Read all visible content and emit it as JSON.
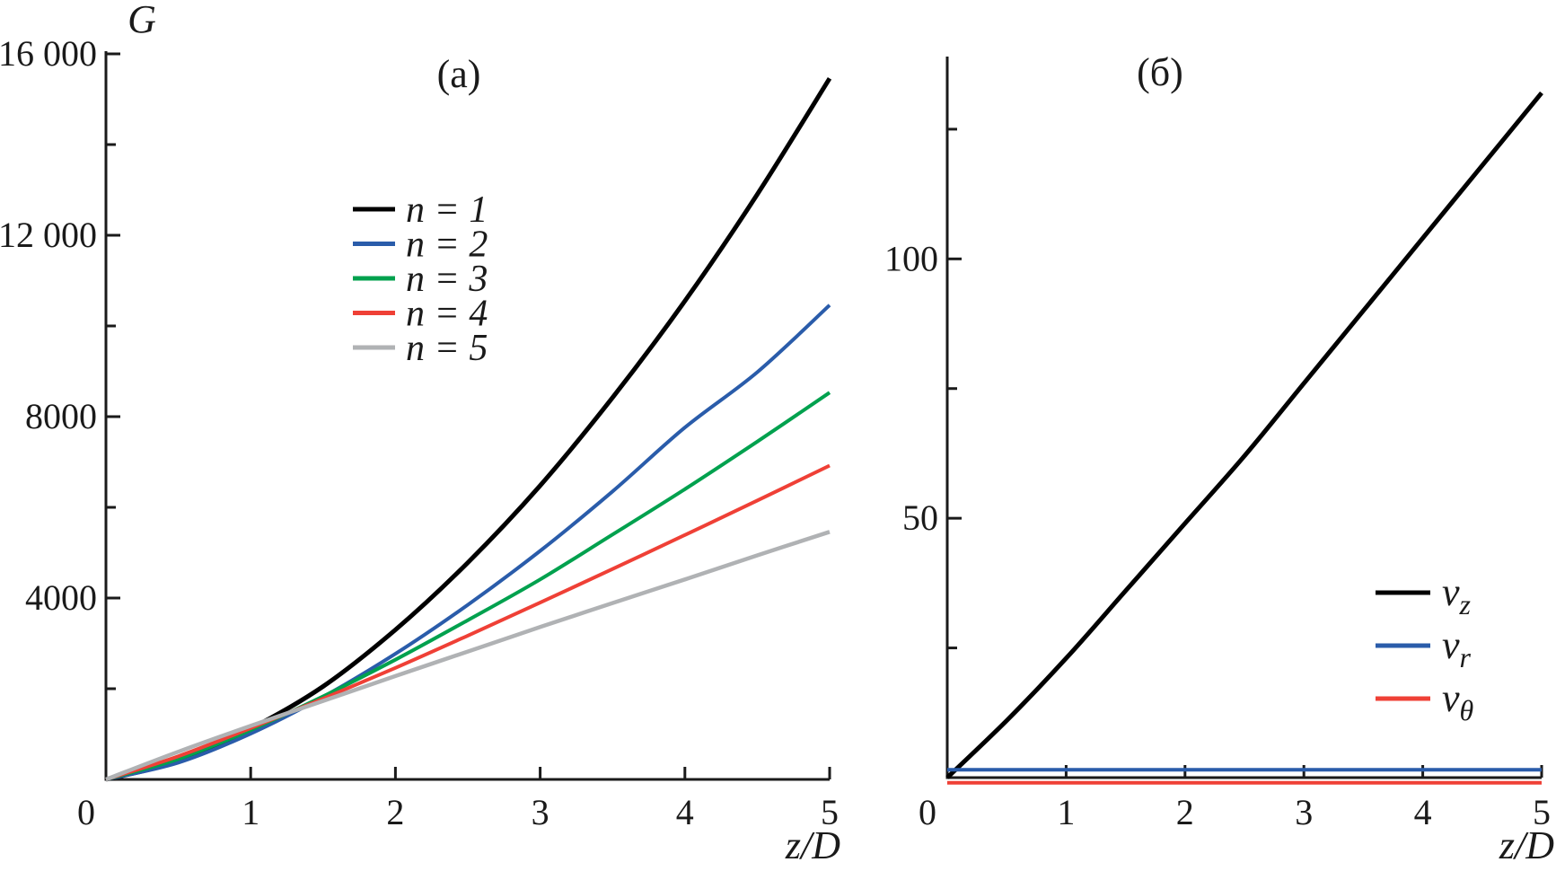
{
  "figure": {
    "background": "#ffffff",
    "text_color": "#1a1a1a",
    "axis_color": "#1a1a1a"
  },
  "chart_data": [
    {
      "id": "a",
      "type": "line",
      "title": "(а)",
      "xlabel": "z/D",
      "ylabel": "G",
      "xlim": [
        0,
        5
      ],
      "ylim": [
        0,
        16000
      ],
      "grid": false,
      "legend_position": "inside-upper-middle",
      "x_ticks": [
        {
          "value": 0,
          "label": "0"
        },
        {
          "value": 1,
          "label": "1"
        },
        {
          "value": 2,
          "label": "2"
        },
        {
          "value": 3,
          "label": "3"
        },
        {
          "value": 4,
          "label": "4"
        },
        {
          "value": 5,
          "label": "5"
        }
      ],
      "y_ticks": [
        {
          "value": 2000,
          "label": ""
        },
        {
          "value": 4000,
          "label": "4000"
        },
        {
          "value": 6000,
          "label": ""
        },
        {
          "value": 8000,
          "label": "8000"
        },
        {
          "value": 10000,
          "label": ""
        },
        {
          "value": 12000,
          "label": "12 000"
        },
        {
          "value": 14000,
          "label": ""
        },
        {
          "value": 16000,
          "label": "16 000"
        }
      ],
      "x": [
        0,
        0.5,
        1,
        1.5,
        2,
        2.5,
        3,
        3.5,
        4,
        4.5,
        5
      ],
      "series": [
        {
          "key": "n-1",
          "label": "n = 1",
          "color": "#000000",
          "line_width": 5,
          "values": [
            0,
            400,
            1120,
            2050,
            3300,
            4780,
            6480,
            8420,
            10550,
            12900,
            15460
          ]
        },
        {
          "key": "n-2",
          "label": "n = 2",
          "color": "#2a5caa",
          "line_width": 4,
          "values": [
            0,
            370,
            1010,
            1820,
            2770,
            3850,
            5040,
            6350,
            7760,
            8980,
            10460
          ]
        },
        {
          "key": "n-3",
          "label": "n = 3",
          "color": "#00a14e",
          "line_width": 4,
          "values": [
            0,
            450,
            1090,
            1830,
            2640,
            3510,
            4410,
            5400,
            6400,
            7450,
            8530
          ]
        },
        {
          "key": "n-4",
          "label": "n = 4",
          "color": "#ef4036",
          "line_width": 4,
          "values": [
            0,
            510,
            1130,
            1780,
            2460,
            3170,
            3900,
            4640,
            5390,
            6150,
            6920
          ]
        },
        {
          "key": "n-5",
          "label": "n = 5",
          "color": "#b0b2b4",
          "line_width": 4.5,
          "values": [
            0,
            610,
            1180,
            1730,
            2280,
            2820,
            3360,
            3890,
            4410,
            4940,
            5460
          ]
        }
      ]
    },
    {
      "id": "b",
      "type": "line",
      "title": "(б)",
      "xlabel": "z/D",
      "ylabel": "",
      "xlim": [
        0,
        5
      ],
      "ylim": [
        0,
        139
      ],
      "grid": false,
      "legend_position": "inside-lower-right",
      "x_ticks": [
        {
          "value": 0,
          "label": "0"
        },
        {
          "value": 1,
          "label": "1"
        },
        {
          "value": 2,
          "label": "2"
        },
        {
          "value": 3,
          "label": "3"
        },
        {
          "value": 4,
          "label": "4"
        },
        {
          "value": 5,
          "label": "5"
        }
      ],
      "y_ticks": [
        {
          "value": 25,
          "label": ""
        },
        {
          "value": 50,
          "label": "50"
        },
        {
          "value": 75,
          "label": ""
        },
        {
          "value": 100,
          "label": "100"
        },
        {
          "value": 125,
          "label": ""
        }
      ],
      "x": [
        0,
        0.5,
        1,
        1.5,
        2,
        2.5,
        3,
        3.5,
        4,
        4.5,
        5
      ],
      "series": [
        {
          "key": "v-z",
          "label_base": "v",
          "label_sub": "z",
          "color": "#000000",
          "line_width": 5,
          "values": [
            0,
            11,
            23,
            36,
            49,
            62,
            76,
            90,
            104,
            118,
            132
          ]
        },
        {
          "key": "v-r",
          "label_base": "v",
          "label_sub": "r",
          "color": "#2a5caa",
          "line_width": 4,
          "values": [
            1.5,
            1.5,
            1.5,
            1.5,
            1.5,
            1.5,
            1.5,
            1.5,
            1.5,
            1.5,
            1.5
          ]
        },
        {
          "key": "v-theta",
          "label_base": "v",
          "label_sub": "θ",
          "color": "#ef4036",
          "line_width": 4,
          "values": [
            -1,
            -1,
            -1,
            -1,
            -1,
            -1,
            -1,
            -1,
            -1,
            -1,
            -1
          ]
        }
      ]
    }
  ]
}
